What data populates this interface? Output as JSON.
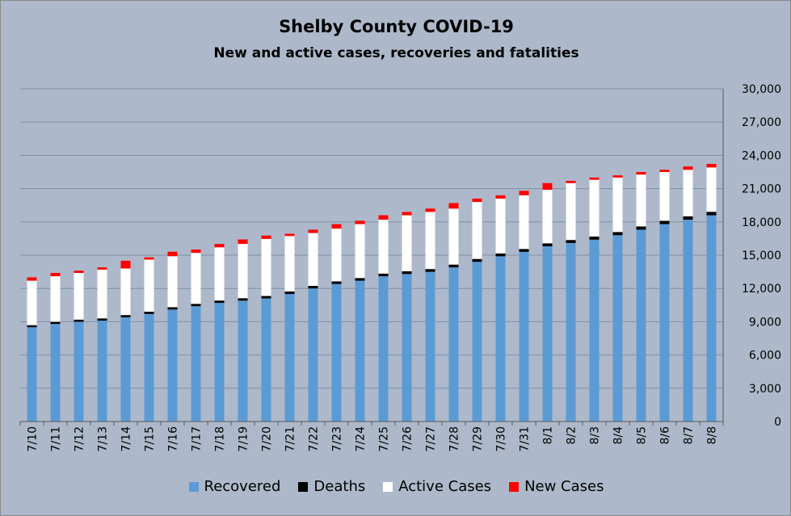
{
  "chart_data": {
    "type": "bar",
    "stacked": true,
    "title": "Shelby County COVID-19",
    "subtitle": "New and active cases, recoveries and fatalities",
    "categories": [
      "7/10",
      "7/11",
      "7/12",
      "7/13",
      "7/14",
      "7/15",
      "7/16",
      "7/17",
      "7/18",
      "7/19",
      "7/20",
      "7/21",
      "7/22",
      "7/23",
      "7/24",
      "7/25",
      "7/26",
      "7/27",
      "7/28",
      "7/29",
      "7/30",
      "7/31",
      "8/1",
      "8/2",
      "8/3",
      "8/4",
      "8/5",
      "8/6",
      "8/7",
      "8/8"
    ],
    "series": [
      {
        "name": "Recovered",
        "color": "#5b9bd5",
        "values": [
          8500,
          8800,
          9000,
          9100,
          9400,
          9700,
          10100,
          10400,
          10700,
          10900,
          11100,
          11500,
          12000,
          12400,
          12700,
          13100,
          13300,
          13500,
          13900,
          14400,
          14900,
          15300,
          15800,
          16100,
          16400,
          16800,
          17300,
          17800,
          18200,
          18600
        ]
      },
      {
        "name": "Deaths",
        "color": "#000000",
        "values": [
          190,
          190,
          190,
          200,
          200,
          200,
          210,
          210,
          210,
          220,
          220,
          230,
          230,
          240,
          240,
          240,
          250,
          250,
          250,
          260,
          260,
          260,
          270,
          270,
          280,
          290,
          290,
          300,
          300,
          310
        ]
      },
      {
        "name": "Active Cases",
        "color": "#ffffff",
        "values": [
          4010,
          4110,
          4210,
          4400,
          4200,
          4700,
          4600,
          4600,
          4800,
          4900,
          5150,
          5000,
          4770,
          4760,
          4860,
          4860,
          5050,
          5150,
          5050,
          5140,
          4940,
          4840,
          4830,
          5130,
          5120,
          4910,
          4680,
          4400,
          4200,
          4000
        ]
      },
      {
        "name": "New Cases",
        "color": "#ff0000",
        "values": [
          300,
          300,
          200,
          200,
          700,
          200,
          400,
          300,
          300,
          400,
          300,
          200,
          300,
          400,
          300,
          400,
          300,
          300,
          500,
          300,
          300,
          400,
          600,
          200,
          200,
          200,
          230,
          200,
          300,
          320
        ]
      }
    ],
    "ylim": [
      0,
      30000
    ],
    "yticks": [
      0,
      3000,
      6000,
      9000,
      12000,
      15000,
      18000,
      21000,
      24000,
      27000,
      30000
    ],
    "ytick_labels": [
      "0",
      "3,000",
      "6,000",
      "9,000",
      "12,000",
      "15,000",
      "18,000",
      "21,000",
      "24,000",
      "27,000",
      "30,000"
    ],
    "xlabel": "",
    "ylabel": "",
    "yaxis_side": "right",
    "grid": "horizontal",
    "legend_position": "bottom",
    "colors": {
      "background": "#adb9ca",
      "grid": "#7f8fa6",
      "axis": "#595959"
    }
  }
}
